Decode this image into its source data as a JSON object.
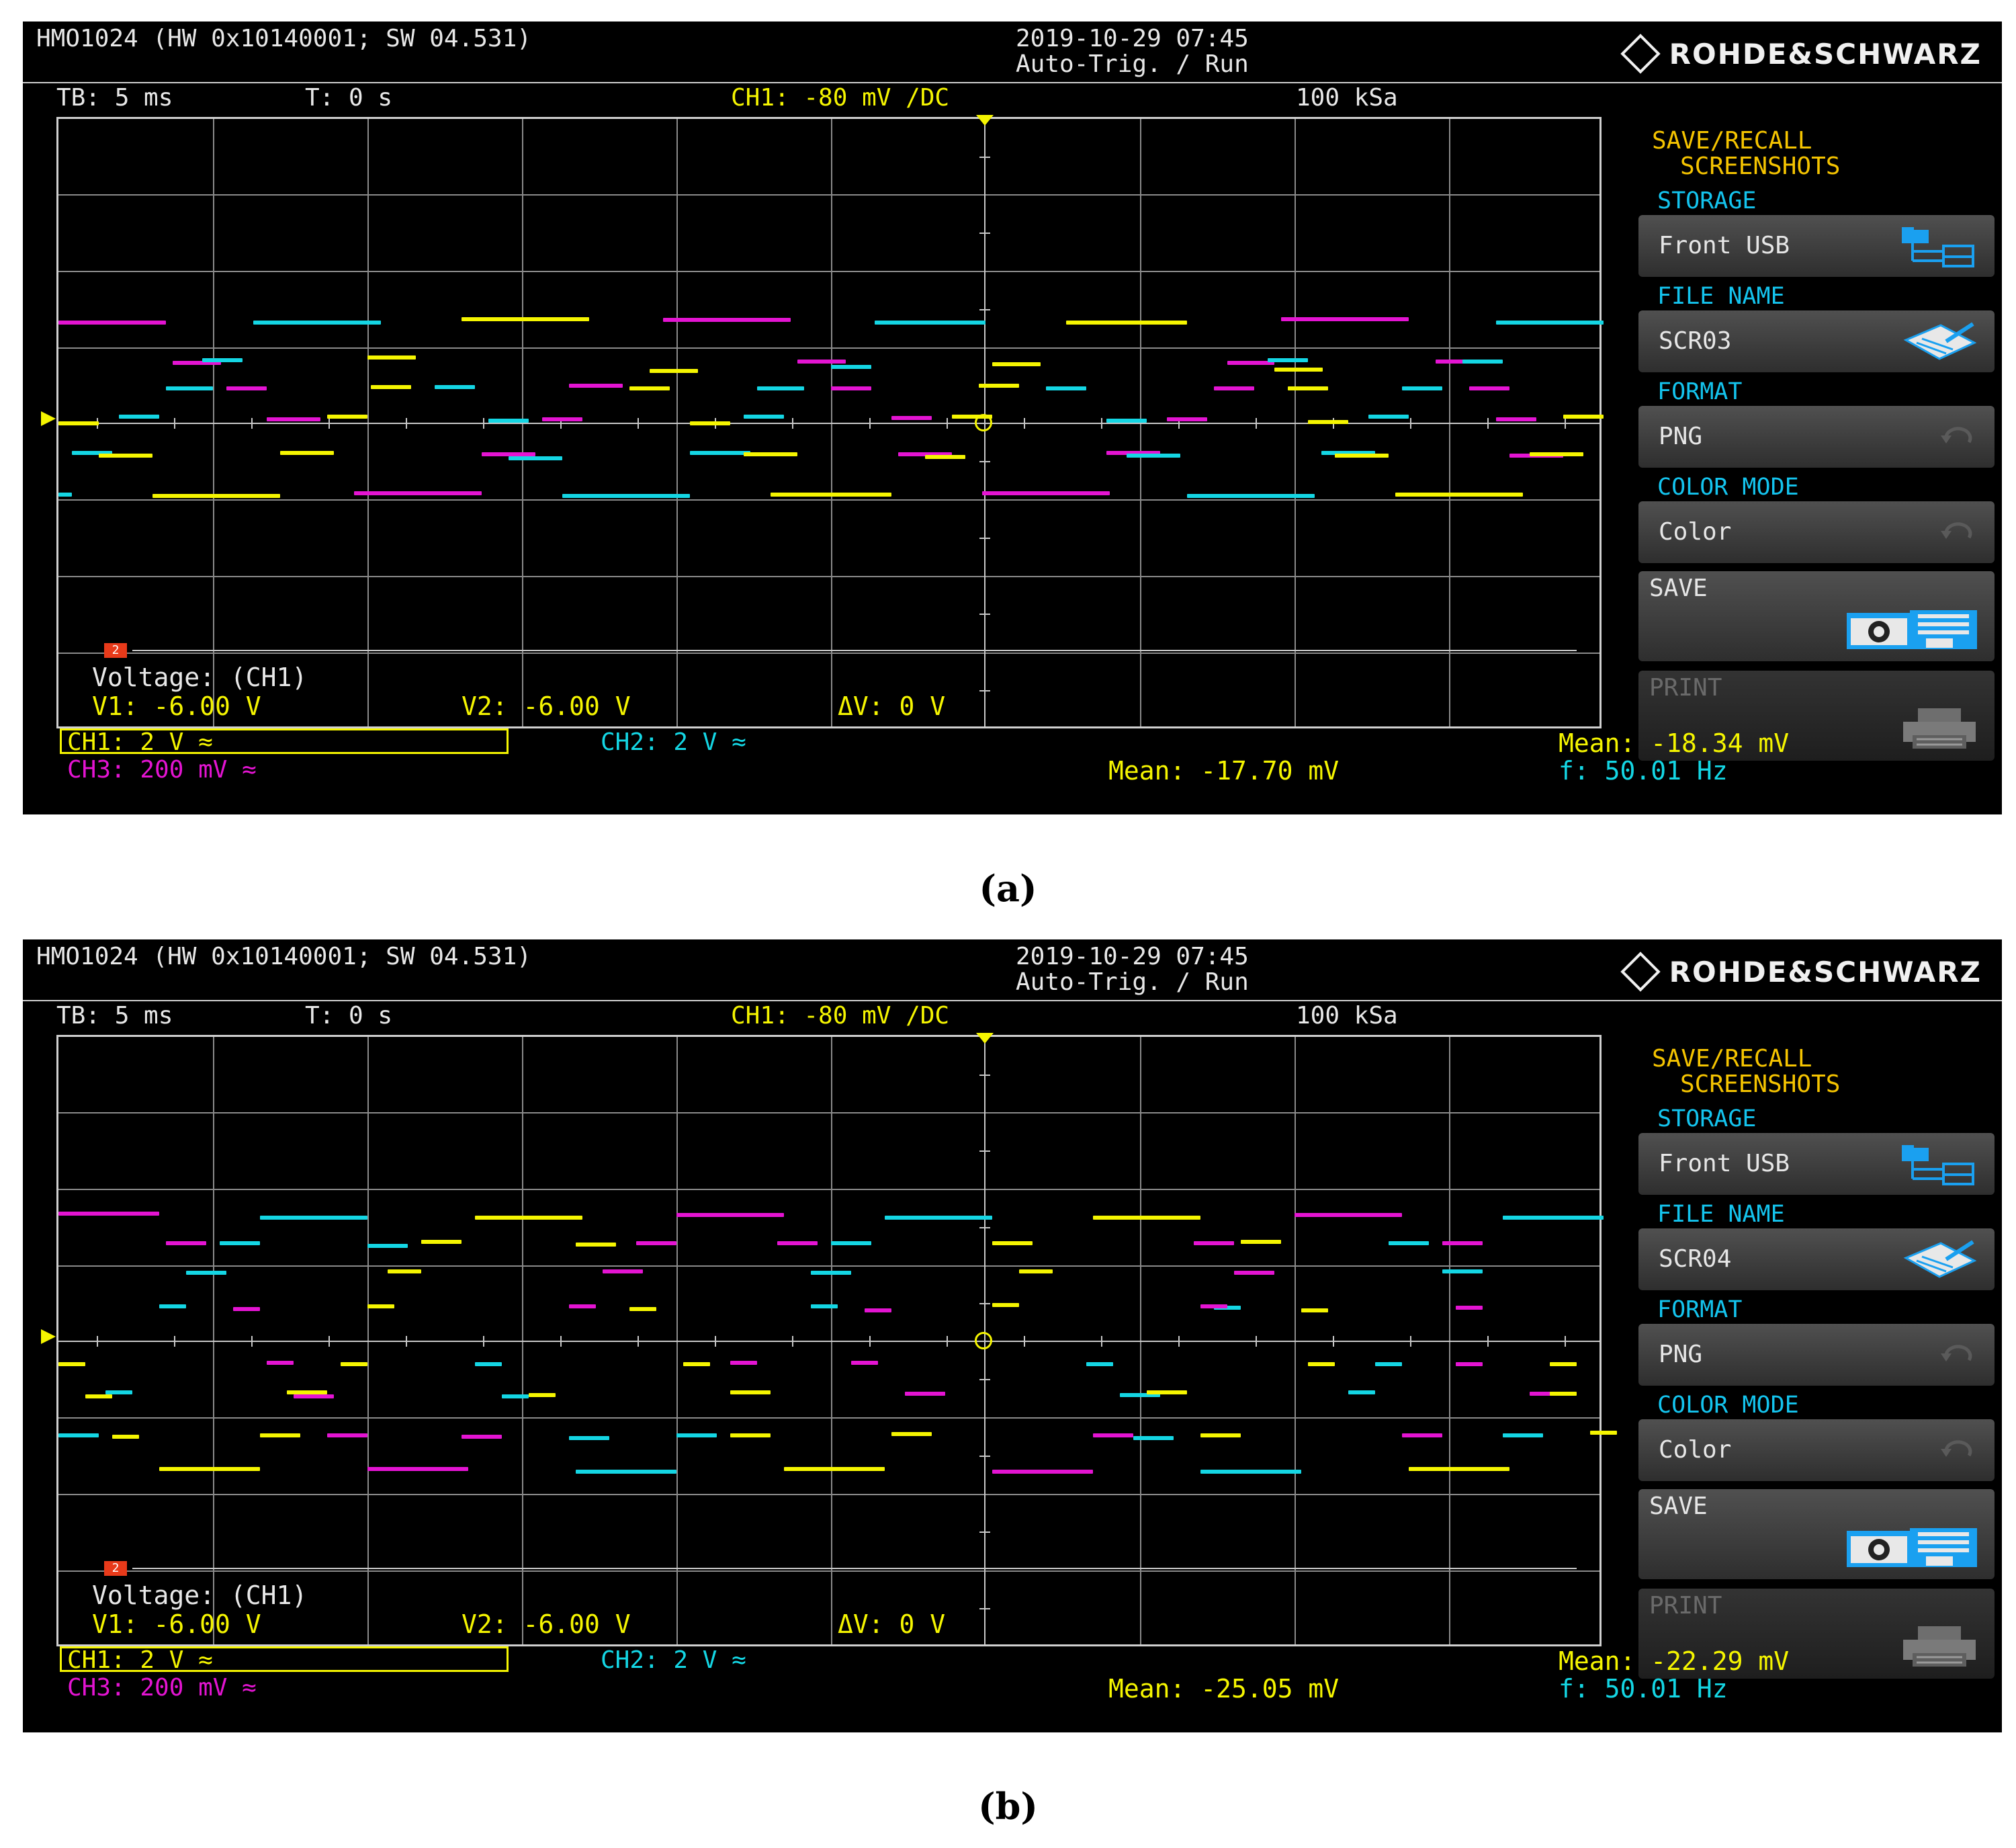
{
  "panels": [
    {
      "caption": "(a)",
      "header": {
        "device": "HMO1024 (HW 0x10140001; SW 04.531)",
        "datetime": "2019-10-29 07:45",
        "mode": "Auto-Trig. / Run",
        "brand": "ROHDE&SCHWARZ",
        "timebase": "TB: 5 ms",
        "trigger_time": "T: 0 s",
        "trigger": "CH1: -80 mV ∕DC",
        "sample_rate": "100 kSa"
      },
      "menu": {
        "title_line1": "SAVE/RECALL",
        "title_line2": "SCREENSHOTS",
        "storage_label": "STORAGE",
        "storage_value": "Front USB",
        "file_name_label": "FILE NAME",
        "file_name_value": "SCR03",
        "format_label": "FORMAT",
        "format_value": "PNG",
        "color_mode_label": "COLOR MODE",
        "color_mode_value": "Color",
        "save_label": "SAVE",
        "print_label": "PRINT"
      },
      "cursor": {
        "title": "Voltage: (CH1)",
        "v1": "V1: -6.00 V",
        "v2": "V2: -6.00 V",
        "dv": "ΔV: 0 V",
        "marker": "2"
      },
      "channels": {
        "ch1": "CH1: 2 V ≈",
        "ch2": "CH2: 2 V ≈",
        "ch3": "CH3: 200 mV ≈"
      },
      "measurements": {
        "mean_left": "Mean: -17.70 mV",
        "mean_right": "Mean: -18.34 mV",
        "frequency": "f: 50.01 Hz"
      }
    },
    {
      "caption": "(b)",
      "header": {
        "device": "HMO1024 (HW 0x10140001; SW 04.531)",
        "datetime": "2019-10-29 07:45",
        "mode": "Auto-Trig. / Run",
        "brand": "ROHDE&SCHWARZ",
        "timebase": "TB: 5 ms",
        "trigger_time": "T: 0 s",
        "trigger": "CH1: -80 mV ∕DC",
        "sample_rate": "100 kSa"
      },
      "menu": {
        "title_line1": "SAVE/RECALL",
        "title_line2": "SCREENSHOTS",
        "storage_label": "STORAGE",
        "storage_value": "Front USB",
        "file_name_label": "FILE NAME",
        "file_name_value": "SCR04",
        "format_label": "FORMAT",
        "format_value": "PNG",
        "color_mode_label": "COLOR MODE",
        "color_mode_value": "Color",
        "save_label": "SAVE",
        "print_label": "PRINT"
      },
      "cursor": {
        "title": "Voltage: (CH1)",
        "v1": "V1: -6.00 V",
        "v2": "V2: -6.00 V",
        "dv": "ΔV: 0 V",
        "marker": "2"
      },
      "channels": {
        "ch1": "CH1: 2 V ≈",
        "ch2": "CH2: 2 V ≈",
        "ch3": "CH3: 200 mV ≈"
      },
      "measurements": {
        "mean_left": "Mean: -25.05 mV",
        "mean_right": "Mean: -22.29 mV",
        "frequency": "f: 50.01 Hz"
      }
    }
  ],
  "channel_colors": {
    "ch1": "#f5f500",
    "ch2": "#14d6e4",
    "ch3": "#e414d2",
    "menu_heading": "#f5c400",
    "menu_label": "#14c4ee"
  },
  "icons": {
    "storage": "folder-tree-icon",
    "file_name": "notepad-pen-icon",
    "format": "cycle-arrow-icon",
    "color_mode": "cycle-arrow-icon",
    "save": "camera-disk-icon",
    "print": "printer-icon"
  }
}
